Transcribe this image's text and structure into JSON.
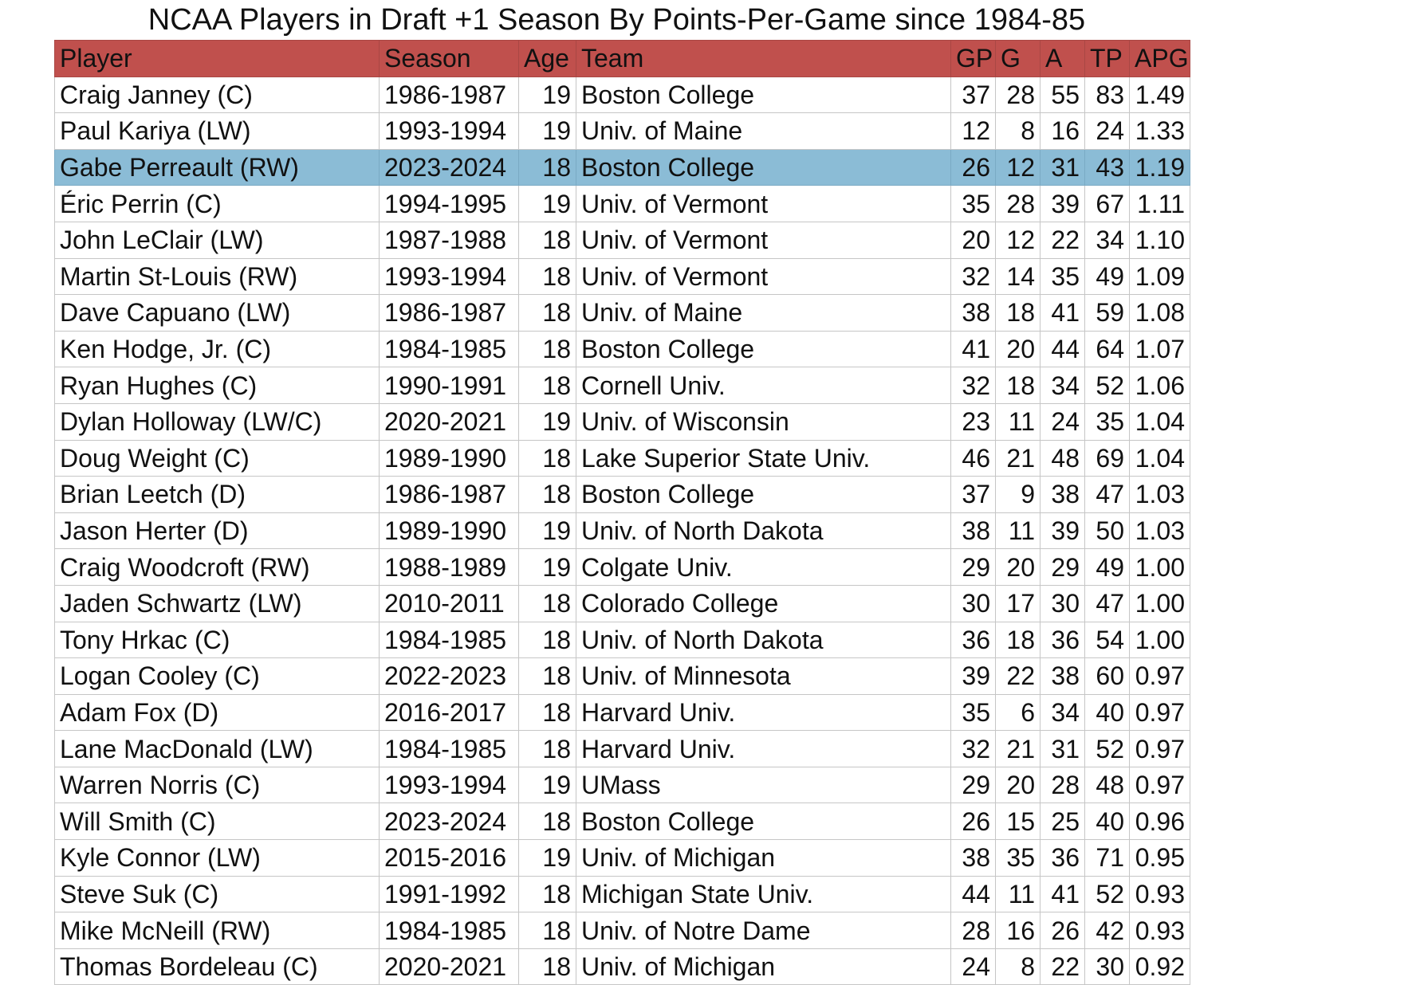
{
  "chart_data": {
    "type": "table",
    "title": "NCAA Players in Draft +1 Season By Points-Per-Game since 1984-85",
    "columns": [
      "Player",
      "Season",
      "Age",
      "Team",
      "GP",
      "G",
      "A",
      "TP",
      "APG"
    ],
    "highlight_color": "#8bbcd6",
    "header_color": "#c0504d",
    "highlighted_row_index": 2,
    "rows": [
      {
        "player": "Craig Janney (C)",
        "season": "1986-1987",
        "age": "19",
        "team": "Boston College",
        "gp": "37",
        "g": "28",
        "a": "55",
        "tp": "83",
        "apg": "1.49"
      },
      {
        "player": "Paul Kariya (LW)",
        "season": "1993-1994",
        "age": "19",
        "team": "Univ. of Maine",
        "gp": "12",
        "g": "8",
        "a": "16",
        "tp": "24",
        "apg": "1.33"
      },
      {
        "player": "Gabe Perreault (RW)",
        "season": "2023-2024",
        "age": "18",
        "team": "Boston College",
        "gp": "26",
        "g": "12",
        "a": "31",
        "tp": "43",
        "apg": "1.19"
      },
      {
        "player": "Éric Perrin (C)",
        "season": "1994-1995",
        "age": "19",
        "team": "Univ. of Vermont",
        "gp": "35",
        "g": "28",
        "a": "39",
        "tp": "67",
        "apg": "1.11"
      },
      {
        "player": "John LeClair (LW)",
        "season": "1987-1988",
        "age": "18",
        "team": "Univ. of Vermont",
        "gp": "20",
        "g": "12",
        "a": "22",
        "tp": "34",
        "apg": "1.10"
      },
      {
        "player": "Martin St-Louis (RW)",
        "season": "1993-1994",
        "age": "18",
        "team": "Univ. of Vermont",
        "gp": "32",
        "g": "14",
        "a": "35",
        "tp": "49",
        "apg": "1.09"
      },
      {
        "player": "Dave Capuano (LW)",
        "season": "1986-1987",
        "age": "18",
        "team": "Univ. of Maine",
        "gp": "38",
        "g": "18",
        "a": "41",
        "tp": "59",
        "apg": "1.08"
      },
      {
        "player": "Ken Hodge, Jr. (C)",
        "season": "1984-1985",
        "age": "18",
        "team": "Boston College",
        "gp": "41",
        "g": "20",
        "a": "44",
        "tp": "64",
        "apg": "1.07"
      },
      {
        "player": "Ryan Hughes (C)",
        "season": "1990-1991",
        "age": "18",
        "team": "Cornell Univ.",
        "gp": "32",
        "g": "18",
        "a": "34",
        "tp": "52",
        "apg": "1.06"
      },
      {
        "player": "Dylan Holloway (LW/C)",
        "season": "2020-2021",
        "age": "19",
        "team": "Univ. of Wisconsin",
        "gp": "23",
        "g": "11",
        "a": "24",
        "tp": "35",
        "apg": "1.04"
      },
      {
        "player": "Doug Weight (C)",
        "season": "1989-1990",
        "age": "18",
        "team": "Lake Superior State Univ.",
        "gp": "46",
        "g": "21",
        "a": "48",
        "tp": "69",
        "apg": "1.04"
      },
      {
        "player": "Brian Leetch (D)",
        "season": "1986-1987",
        "age": "18",
        "team": "Boston College",
        "gp": "37",
        "g": "9",
        "a": "38",
        "tp": "47",
        "apg": "1.03"
      },
      {
        "player": "Jason Herter (D)",
        "season": "1989-1990",
        "age": "19",
        "team": "Univ. of North Dakota",
        "gp": "38",
        "g": "11",
        "a": "39",
        "tp": "50",
        "apg": "1.03"
      },
      {
        "player": "Craig Woodcroft (RW)",
        "season": "1988-1989",
        "age": "19",
        "team": "Colgate Univ.",
        "gp": "29",
        "g": "20",
        "a": "29",
        "tp": "49",
        "apg": "1.00"
      },
      {
        "player": "Jaden Schwartz (LW)",
        "season": "2010-2011",
        "age": "18",
        "team": "Colorado College",
        "gp": "30",
        "g": "17",
        "a": "30",
        "tp": "47",
        "apg": "1.00"
      },
      {
        "player": "Tony Hrkac (C)",
        "season": "1984-1985",
        "age": "18",
        "team": "Univ. of North Dakota",
        "gp": "36",
        "g": "18",
        "a": "36",
        "tp": "54",
        "apg": "1.00"
      },
      {
        "player": "Logan Cooley (C)",
        "season": "2022-2023",
        "age": "18",
        "team": "Univ. of Minnesota",
        "gp": "39",
        "g": "22",
        "a": "38",
        "tp": "60",
        "apg": "0.97"
      },
      {
        "player": "Adam Fox (D)",
        "season": "2016-2017",
        "age": "18",
        "team": "Harvard Univ.",
        "gp": "35",
        "g": "6",
        "a": "34",
        "tp": "40",
        "apg": "0.97"
      },
      {
        "player": "Lane MacDonald (LW)",
        "season": "1984-1985",
        "age": "18",
        "team": "Harvard Univ.",
        "gp": "32",
        "g": "21",
        "a": "31",
        "tp": "52",
        "apg": "0.97"
      },
      {
        "player": "Warren Norris (C)",
        "season": "1993-1994",
        "age": "19",
        "team": "UMass",
        "gp": "29",
        "g": "20",
        "a": "28",
        "tp": "48",
        "apg": "0.97"
      },
      {
        "player": "Will Smith (C)",
        "season": "2023-2024",
        "age": "18",
        "team": "Boston College",
        "gp": "26",
        "g": "15",
        "a": "25",
        "tp": "40",
        "apg": "0.96"
      },
      {
        "player": "Kyle Connor (LW)",
        "season": "2015-2016",
        "age": "19",
        "team": "Univ. of Michigan",
        "gp": "38",
        "g": "35",
        "a": "36",
        "tp": "71",
        "apg": "0.95"
      },
      {
        "player": "Steve Suk (C)",
        "season": "1991-1992",
        "age": "18",
        "team": "Michigan State Univ.",
        "gp": "44",
        "g": "11",
        "a": "41",
        "tp": "52",
        "apg": "0.93"
      },
      {
        "player": "Mike McNeill (RW)",
        "season": "1984-1985",
        "age": "18",
        "team": "Univ. of Notre Dame",
        "gp": "28",
        "g": "16",
        "a": "26",
        "tp": "42",
        "apg": "0.93"
      },
      {
        "player": "Thomas Bordeleau (C)",
        "season": "2020-2021",
        "age": "18",
        "team": "Univ. of Michigan",
        "gp": "24",
        "g": "8",
        "a": "22",
        "tp": "30",
        "apg": "0.92"
      }
    ]
  }
}
